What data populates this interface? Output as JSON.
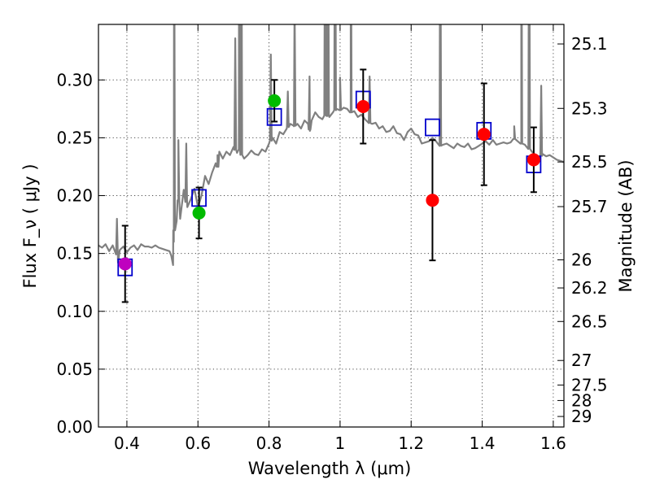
{
  "chart_data": {
    "type": "scatter",
    "xlabel": "Wavelength  λ (μm)",
    "ylabel": "Flux  F_ν  ( μJy )",
    "ylabel_right": "Magnitude (AB)",
    "xlim": [
      0.32,
      1.63
    ],
    "ylim": [
      0.0,
      0.348
    ],
    "x_ticks": [
      0.4,
      0.6,
      0.8,
      1.0,
      1.2,
      1.4,
      1.6
    ],
    "x_tick_labels": [
      "0.4",
      "0.6",
      "0.8",
      "1",
      "1.2",
      "1.4",
      "1.6"
    ],
    "y_ticks": [
      0.0,
      0.05,
      0.1,
      0.15,
      0.2,
      0.25,
      0.3
    ],
    "y_tick_labels": [
      "0.00",
      "0.05",
      "0.10",
      "0.15",
      "0.20",
      "0.25",
      "0.30"
    ],
    "mag_ticks": [
      {
        "flux": 0.3311,
        "label": "25.1"
      },
      {
        "flux": 0.2754,
        "label": "25.3"
      },
      {
        "flux": 0.2291,
        "label": "25.5"
      },
      {
        "flux": 0.1905,
        "label": "25.7"
      },
      {
        "flux": 0.1445,
        "label": "26"
      },
      {
        "flux": 0.1202,
        "label": "26.2"
      },
      {
        "flux": 0.0912,
        "label": "26.5"
      },
      {
        "flux": 0.0575,
        "label": "27"
      },
      {
        "flux": 0.0363,
        "label": "27.5"
      },
      {
        "flux": 0.0229,
        "label": "28"
      },
      {
        "flux": 0.0091,
        "label": "29"
      }
    ],
    "grid": true,
    "series": [
      {
        "name": "photometry",
        "marker": "filled-circle",
        "points": [
          {
            "x": 0.395,
            "y": 0.141,
            "err": 0.033,
            "color": "#bf00bf"
          },
          {
            "x": 0.603,
            "y": 0.185,
            "err": 0.022,
            "color": "#00bb00"
          },
          {
            "x": 0.815,
            "y": 0.282,
            "err": 0.018,
            "color": "#00bb00"
          },
          {
            "x": 1.065,
            "y": 0.277,
            "err": 0.032,
            "color": "#ff0000"
          },
          {
            "x": 1.26,
            "y": 0.196,
            "err": 0.052,
            "color": "#ff0000"
          },
          {
            "x": 1.405,
            "y": 0.253,
            "err": 0.044,
            "color": "#ff0000"
          },
          {
            "x": 1.545,
            "y": 0.231,
            "err": 0.028,
            "color": "#ff0000"
          }
        ]
      },
      {
        "name": "model-photometry",
        "marker": "open-square",
        "color": "#0000cc",
        "points": [
          {
            "x": 0.395,
            "y": 0.138
          },
          {
            "x": 0.603,
            "y": 0.198
          },
          {
            "x": 0.815,
            "y": 0.268
          },
          {
            "x": 1.065,
            "y": 0.283
          },
          {
            "x": 1.26,
            "y": 0.259
          },
          {
            "x": 1.405,
            "y": 0.256
          },
          {
            "x": 1.545,
            "y": 0.227
          }
        ]
      },
      {
        "name": "template-spectrum",
        "type": "line",
        "color": "#808080",
        "x": [
          0.32,
          0.33,
          0.34,
          0.35,
          0.36,
          0.37,
          0.375,
          0.38,
          0.39,
          0.4,
          0.41,
          0.42,
          0.43,
          0.44,
          0.45,
          0.46,
          0.47,
          0.48,
          0.49,
          0.5,
          0.51,
          0.52,
          0.525,
          0.53,
          0.532,
          0.535,
          0.54,
          0.545,
          0.55,
          0.56,
          0.57,
          0.58,
          0.59,
          0.6,
          0.61,
          0.62,
          0.63,
          0.64,
          0.65,
          0.655,
          0.66,
          0.67,
          0.68,
          0.69,
          0.7,
          0.71,
          0.715,
          0.72,
          0.73,
          0.74,
          0.75,
          0.76,
          0.77,
          0.78,
          0.79,
          0.8,
          0.81,
          0.82,
          0.83,
          0.84,
          0.85,
          0.86,
          0.87,
          0.88,
          0.89,
          0.9,
          0.91,
          0.915,
          0.92,
          0.93,
          0.94,
          0.95,
          0.96,
          0.97,
          0.98,
          0.99,
          1.0,
          1.01,
          1.02,
          1.03,
          1.04,
          1.05,
          1.06,
          1.07,
          1.08,
          1.09,
          1.1,
          1.11,
          1.12,
          1.13,
          1.14,
          1.15,
          1.16,
          1.17,
          1.18,
          1.19,
          1.2,
          1.21,
          1.22,
          1.23,
          1.24,
          1.25,
          1.26,
          1.27,
          1.28,
          1.29,
          1.3,
          1.31,
          1.32,
          1.33,
          1.34,
          1.35,
          1.36,
          1.37,
          1.38,
          1.39,
          1.4,
          1.41,
          1.42,
          1.43,
          1.44,
          1.45,
          1.46,
          1.47,
          1.48,
          1.49,
          1.5,
          1.51,
          1.52,
          1.53,
          1.54,
          1.55,
          1.56,
          1.57,
          1.58,
          1.59,
          1.6,
          1.61,
          1.62,
          1.63
        ],
        "y": [
          0.157,
          0.155,
          0.158,
          0.152,
          0.157,
          0.154,
          0.142,
          0.153,
          0.156,
          0.151,
          0.155,
          0.157,
          0.153,
          0.158,
          0.156,
          0.156,
          0.155,
          0.157,
          0.155,
          0.154,
          0.153,
          0.152,
          0.148,
          0.14,
          0.16,
          0.19,
          0.178,
          0.196,
          0.18,
          0.205,
          0.19,
          0.197,
          0.206,
          0.19,
          0.2,
          0.217,
          0.21,
          0.22,
          0.228,
          0.225,
          0.238,
          0.232,
          0.238,
          0.235,
          0.242,
          0.237,
          0.24,
          0.236,
          0.232,
          0.235,
          0.239,
          0.236,
          0.235,
          0.24,
          0.238,
          0.245,
          0.25,
          0.245,
          0.255,
          0.253,
          0.258,
          0.262,
          0.26,
          0.262,
          0.258,
          0.265,
          0.262,
          0.256,
          0.265,
          0.272,
          0.268,
          0.266,
          0.27,
          0.268,
          0.272,
          0.275,
          0.274,
          0.276,
          0.275,
          0.272,
          0.273,
          0.268,
          0.27,
          0.266,
          0.263,
          0.262,
          0.263,
          0.258,
          0.26,
          0.255,
          0.256,
          0.26,
          0.254,
          0.253,
          0.248,
          0.255,
          0.258,
          0.253,
          0.252,
          0.245,
          0.246,
          0.247,
          0.25,
          0.247,
          0.243,
          0.244,
          0.245,
          0.243,
          0.241,
          0.245,
          0.243,
          0.242,
          0.245,
          0.24,
          0.241,
          0.243,
          0.245,
          0.247,
          0.244,
          0.248,
          0.244,
          0.245,
          0.246,
          0.245,
          0.246,
          0.249,
          0.247,
          0.245,
          0.244,
          0.241,
          0.238,
          0.235,
          0.232,
          0.236,
          0.234,
          0.235,
          0.233,
          0.231,
          0.23,
          0.229
        ],
        "emission_lines": [
          {
            "x": 0.372,
            "peak": 0.18
          },
          {
            "x": 0.533,
            "peak": 0.5
          },
          {
            "x": 0.545,
            "peak": 0.248
          },
          {
            "x": 0.567,
            "peak": 0.245
          },
          {
            "x": 0.655,
            "peak": 0.235
          },
          {
            "x": 0.705,
            "peak": 0.336
          },
          {
            "x": 0.716,
            "peak": 0.5
          },
          {
            "x": 0.722,
            "peak": 0.5
          },
          {
            "x": 0.805,
            "peak": 0.322
          },
          {
            "x": 0.853,
            "peak": 0.29
          },
          {
            "x": 0.872,
            "peak": 0.37
          },
          {
            "x": 0.914,
            "peak": 0.303
          },
          {
            "x": 0.958,
            "peak": 0.5
          },
          {
            "x": 0.966,
            "peak": 0.5
          },
          {
            "x": 0.986,
            "peak": 0.5
          },
          {
            "x": 1.0,
            "peak": 0.302
          },
          {
            "x": 1.03,
            "peak": 0.5
          },
          {
            "x": 1.083,
            "peak": 0.303
          },
          {
            "x": 1.282,
            "peak": 0.5
          },
          {
            "x": 1.49,
            "peak": 0.26
          },
          {
            "x": 1.51,
            "peak": 0.5
          },
          {
            "x": 1.532,
            "peak": 0.5
          },
          {
            "x": 1.566,
            "peak": 0.295
          }
        ]
      }
    ]
  }
}
